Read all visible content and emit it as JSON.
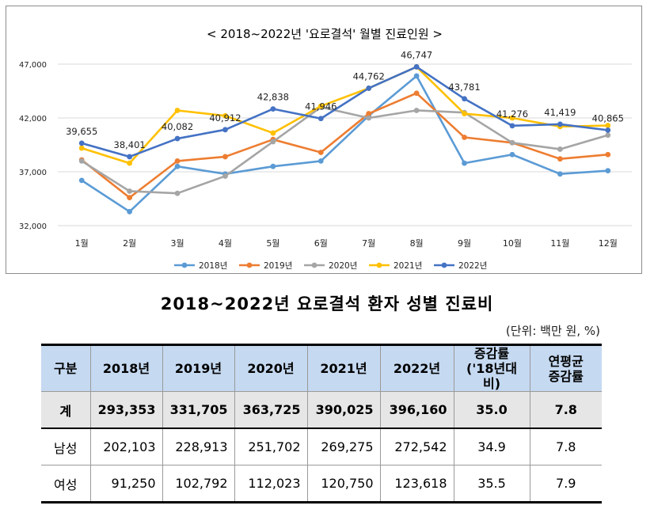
{
  "chart_data": {
    "type": "line",
    "title": "< 2018~2022년 '요로결석' 월별 진료인원 >",
    "categories": [
      "1월",
      "2월",
      "3월",
      "4월",
      "5월",
      "6월",
      "7월",
      "8월",
      "9월",
      "10월",
      "11월",
      "12월"
    ],
    "ylim": [
      32000,
      47000
    ],
    "yticks": [
      32000,
      37000,
      42000,
      47000
    ],
    "ytick_labels": [
      "32,000",
      "37,000",
      "42,000",
      "47,000"
    ],
    "grid": true,
    "legend": "bottom",
    "series": [
      {
        "name": "2018년",
        "color": "#5b9bd5",
        "values": [
          36200,
          33300,
          37500,
          36800,
          37500,
          38000,
          42200,
          45900,
          37800,
          38600,
          36800,
          37100
        ]
      },
      {
        "name": "2019년",
        "color": "#ed7d31",
        "values": [
          38100,
          34600,
          38000,
          38400,
          40000,
          38800,
          42400,
          44300,
          40200,
          39700,
          38200,
          38600
        ]
      },
      {
        "name": "2020년",
        "color": "#a5a5a5",
        "values": [
          38000,
          35200,
          35000,
          36600,
          39800,
          43000,
          42000,
          42700,
          42500,
          39700,
          39100,
          40400
        ]
      },
      {
        "name": "2021년",
        "color": "#ffc000",
        "values": [
          39200,
          37800,
          42700,
          42200,
          40600,
          43100,
          44762,
          46747,
          42400,
          42000,
          41200,
          41300
        ]
      },
      {
        "name": "2022년",
        "color": "#4472c4",
        "values": [
          39655,
          38401,
          40082,
          40912,
          42838,
          41946,
          44762,
          46747,
          43781,
          41276,
          41419,
          40865
        ],
        "labels": [
          "39,655",
          "38,401",
          "40,082",
          "40,912",
          "42,838",
          "41,946",
          "44,762",
          "46,747",
          "43,781",
          "41,276",
          "41,419",
          "40,865"
        ]
      }
    ]
  },
  "table": {
    "title": "2018~2022년 요로결석 환자 성별 진료비",
    "unit_note": "(단위: 백만 원, %)",
    "headers": [
      "구분",
      "2018년",
      "2019년",
      "2020년",
      "2021년",
      "2022년",
      "증감률\n('18년대비)",
      "연평균\n증감률"
    ],
    "rows": [
      {
        "cells": [
          "계",
          "293,353",
          "331,705",
          "363,725",
          "390,025",
          "396,160",
          "35.0",
          "7.8"
        ]
      },
      {
        "cells": [
          "남성",
          "202,103",
          "228,913",
          "251,702",
          "269,275",
          "272,542",
          "34.9",
          "7.8"
        ]
      },
      {
        "cells": [
          "여성",
          "91,250",
          "102,792",
          "112,023",
          "120,750",
          "123,618",
          "35.5",
          "7.9"
        ]
      }
    ]
  }
}
